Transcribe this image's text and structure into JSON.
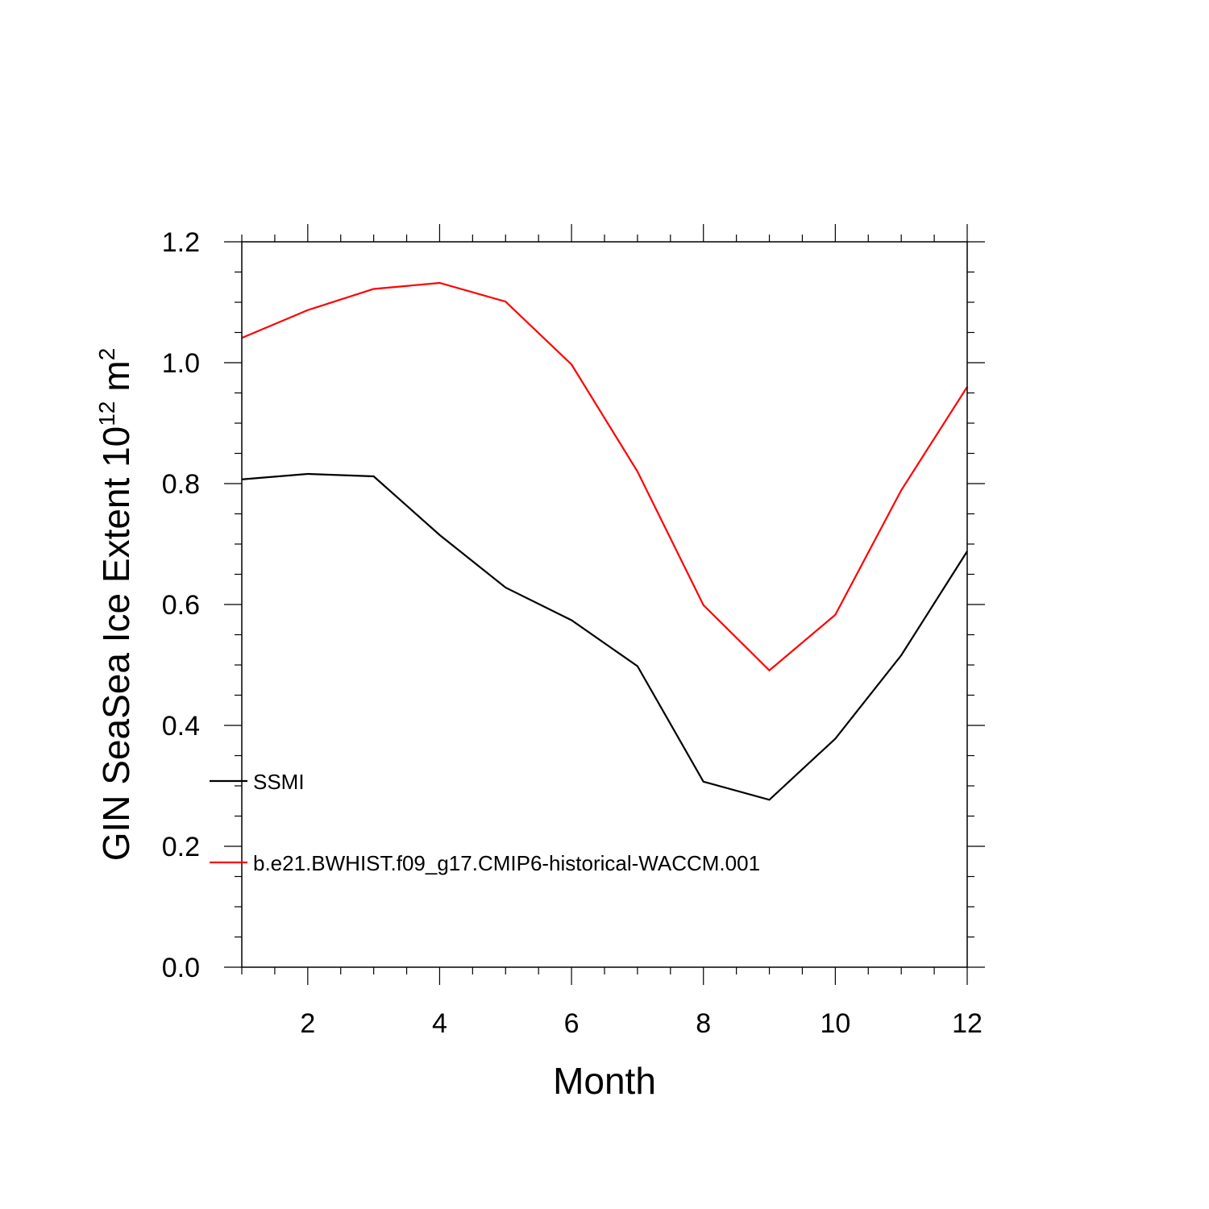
{
  "chart_data": {
    "type": "line",
    "title": "",
    "xlabel": "Month",
    "ylabel": "GIN SeaSea Ice Extent 10",
    "ylabel_exponent": "12",
    "ylabel_unit": "m",
    "ylabel_unit_exponent": "2",
    "xlim": [
      1,
      12
    ],
    "ylim": [
      0.0,
      1.2
    ],
    "x": [
      1,
      2,
      3,
      4,
      5,
      6,
      7,
      8,
      9,
      10,
      11,
      12
    ],
    "x_ticks": [
      "2",
      "4",
      "6",
      "8",
      "10",
      "12"
    ],
    "y_ticks": [
      "0.0",
      "0.2",
      "0.4",
      "0.6",
      "0.8",
      "1.0",
      "1.2"
    ],
    "grid": false,
    "legend_position": "bottom-left",
    "series": [
      {
        "name": "SSMI",
        "color": "#000000",
        "values": [
          0.807,
          0.816,
          0.812,
          0.715,
          0.628,
          0.574,
          0.498,
          0.307,
          0.277,
          0.378,
          0.516,
          0.688
        ]
      },
      {
        "name": "b.e21.BWHIST.f09_g17.CMIP6-historical-WACCM.001",
        "color": "#ff0000",
        "values": [
          1.041,
          1.087,
          1.122,
          1.132,
          1.101,
          0.997,
          0.82,
          0.599,
          0.491,
          0.583,
          0.789,
          0.96
        ]
      }
    ]
  }
}
